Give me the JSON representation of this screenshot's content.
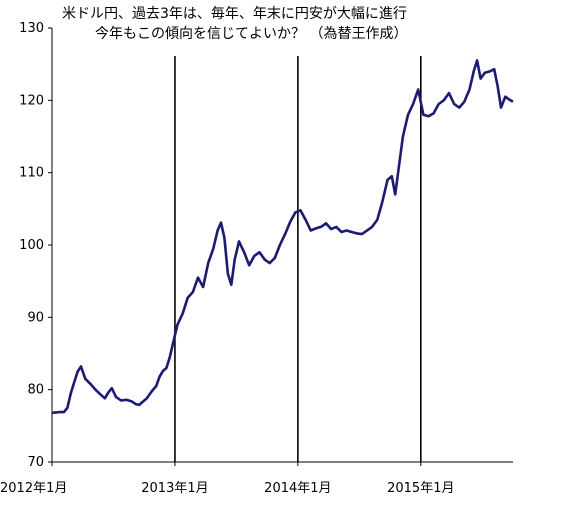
{
  "chart_data": {
    "type": "line",
    "title_lines": [
      "米ドル円、過去3年は、毎年、年末に円安が大幅に進行",
      "今年もこの傾向を信じてよいか？ （為替王作成）"
    ],
    "xlabel": "",
    "ylabel": "",
    "ylim": [
      70,
      130
    ],
    "yticks": [
      70,
      80,
      90,
      100,
      110,
      120,
      130
    ],
    "xlim": [
      "2012-01",
      "2015-10"
    ],
    "xticks": [
      {
        "date": "2012-01",
        "label": "2012年1月"
      },
      {
        "date": "2013-01",
        "label": "2013年1月"
      },
      {
        "date": "2014-01",
        "label": "2014年1月"
      },
      {
        "date": "2015-01",
        "label": "2015年1月"
      }
    ],
    "vlines": [
      "2013-01",
      "2014-01",
      "2015-01"
    ],
    "grid": false,
    "legend": "none",
    "line_color": "#1a1a7a",
    "series": [
      {
        "x": [
          "2012-01",
          "2012-01",
          "2012-02",
          "2012-02",
          "2012-02",
          "2012-03",
          "2012-03",
          "2012-03",
          "2012-04",
          "2012-04",
          "2012-05",
          "2012-05",
          "2012-06",
          "2012-06",
          "2012-06",
          "2012-07",
          "2012-07",
          "2012-08",
          "2012-08",
          "2012-09",
          "2012-09",
          "2012-09",
          "2012-10",
          "2012-10",
          "2012-11",
          "2012-11",
          "2012-11",
          "2012-12",
          "2012-12",
          "2012-12",
          "2013-01",
          "2013-01",
          "2013-02",
          "2013-02",
          "2013-03",
          "2013-03",
          "2013-04",
          "2013-04",
          "2013-05",
          "2013-05",
          "2013-05",
          "2013-06",
          "2013-06",
          "2013-06",
          "2013-07",
          "2013-07",
          "2013-08",
          "2013-08",
          "2013-09",
          "2013-09",
          "2013-10",
          "2013-10",
          "2013-11",
          "2013-11",
          "2013-12",
          "2013-12",
          "2014-01",
          "2014-01",
          "2014-02",
          "2014-02",
          "2014-03",
          "2014-03",
          "2014-04",
          "2014-04",
          "2014-05",
          "2014-05",
          "2014-06",
          "2014-06",
          "2014-07",
          "2014-07",
          "2014-08",
          "2014-08",
          "2014-09",
          "2014-09",
          "2014-10",
          "2014-10",
          "2014-10",
          "2014-11",
          "2014-11",
          "2014-12",
          "2014-12",
          "2015-01",
          "2015-01",
          "2015-02",
          "2015-02",
          "2015-03",
          "2015-03",
          "2015-04",
          "2015-04",
          "2015-05",
          "2015-05",
          "2015-06",
          "2015-06",
          "2015-06",
          "2015-07",
          "2015-07",
          "2015-08",
          "2015-08",
          "2015-08",
          "2015-09",
          "2015-09",
          "2015-10"
        ],
        "values": [
          76.8,
          76.9,
          76.9,
          77.5,
          79.5,
          81.0,
          82.5,
          83.2,
          81.5,
          80.8,
          80.0,
          79.3,
          78.8,
          79.6,
          80.2,
          79.0,
          78.5,
          78.6,
          78.4,
          78.0,
          77.9,
          78.3,
          78.8,
          79.8,
          80.5,
          81.8,
          82.6,
          83.0,
          84.5,
          86.5,
          89.0,
          90.5,
          92.7,
          93.5,
          95.5,
          94.2,
          97.5,
          99.5,
          102.0,
          103.1,
          101.0,
          96.0,
          94.5,
          98.0,
          100.5,
          99.0,
          97.2,
          98.5,
          99.0,
          98.0,
          97.5,
          98.2,
          100.0,
          101.5,
          103.2,
          104.5,
          104.8,
          103.5,
          102.0,
          102.3,
          102.5,
          103.0,
          102.2,
          102.5,
          101.8,
          102.0,
          101.8,
          101.6,
          101.5,
          102.0,
          102.5,
          103.5,
          106.0,
          109.0,
          109.5,
          107.0,
          110.5,
          115.0,
          118.0,
          119.5,
          121.5,
          118.0,
          117.8,
          118.2,
          119.5,
          120.0,
          121.0,
          119.5,
          119.0,
          119.8,
          121.5,
          124.0,
          125.5,
          123.0,
          123.8,
          124.0,
          124.3,
          122.0,
          119.0,
          120.5,
          120.0,
          119.8
        ]
      }
    ]
  }
}
